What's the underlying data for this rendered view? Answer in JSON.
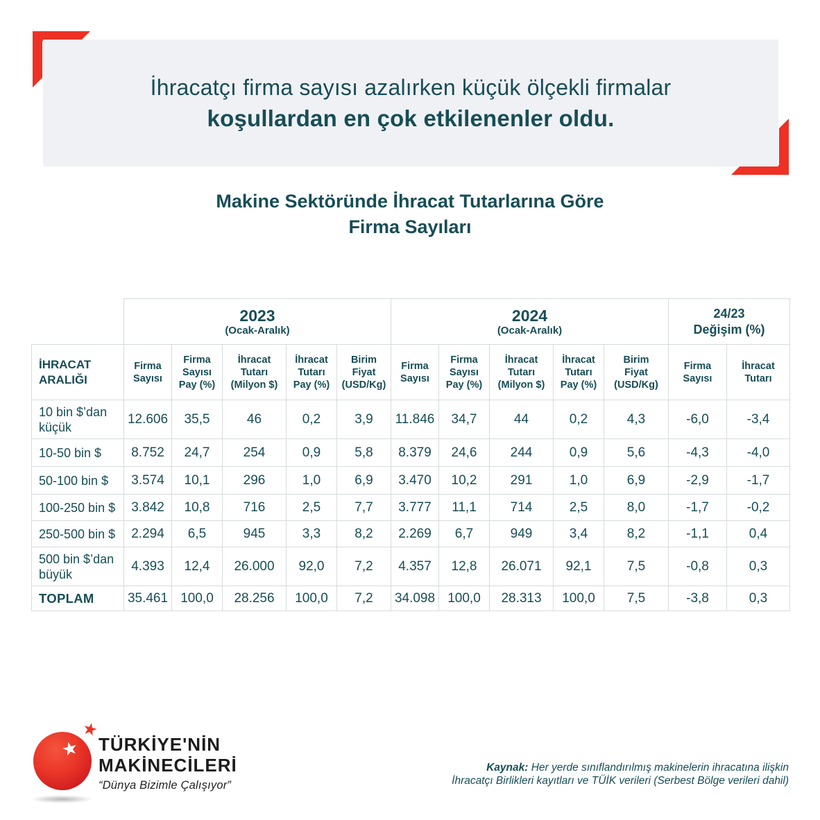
{
  "colors": {
    "accent_red": "#ee3124",
    "teal": "#174d57",
    "banner_bg": "#f0f1f4",
    "table_border": "#d7dbdf"
  },
  "banner": {
    "line1": "İhracatçı firma sayısı azalırken küçük ölçekli firmalar",
    "line2": "koşullardan en çok etkilenenler oldu."
  },
  "title": {
    "line1": "Makine Sektöründe İhracat Tutarlarına Göre",
    "line2": "Firma Sayıları"
  },
  "chart_data": {
    "type": "table",
    "title": "Makine Sektöründe İhracat Tutarlarına Göre Firma Sayıları",
    "row_axis_label": "İHRACAT ARALIĞI",
    "column_groups": [
      {
        "label": "2023",
        "sublabel": "(Ocak-Aralık)",
        "span": 5
      },
      {
        "label": "2024",
        "sublabel": "(Ocak-Aralık)",
        "span": 5
      },
      {
        "label": "24/23",
        "sublabel": "Değişim (%)",
        "span": 2
      }
    ],
    "period_subcolumns": [
      "Firma\nSayısı",
      "Firma\nSayısı\nPay (%)",
      "İhracat\nTutarı\n(Milyon $)",
      "İhracat\nTutarı\nPay (%)",
      "Birim\nFiyat\n(USD/Kg)"
    ],
    "change_subcolumns": [
      "Firma\nSayısı",
      "İhracat\nTutarı"
    ],
    "rows": [
      {
        "label": "10 bin $’dan küçük",
        "values": [
          "12.606",
          "35,5",
          "46",
          "0,2",
          "3,9",
          "11.846",
          "34,7",
          "44",
          "0,2",
          "4,3",
          "-6,0",
          "-3,4"
        ]
      },
      {
        "label": "10-50 bin $",
        "values": [
          "8.752",
          "24,7",
          "254",
          "0,9",
          "5,8",
          "8.379",
          "24,6",
          "244",
          "0,9",
          "5,6",
          "-4,3",
          "-4,0"
        ]
      },
      {
        "label": "50-100 bin $",
        "values": [
          "3.574",
          "10,1",
          "296",
          "1,0",
          "6,9",
          "3.470",
          "10,2",
          "291",
          "1,0",
          "6,9",
          "-2,9",
          "-1,7"
        ]
      },
      {
        "label": "100-250 bin $",
        "values": [
          "3.842",
          "10,8",
          "716",
          "2,5",
          "7,7",
          "3.777",
          "11,1",
          "714",
          "2,5",
          "8,0",
          "-1,7",
          "-0,2"
        ]
      },
      {
        "label": "250-500 bin $",
        "values": [
          "2.294",
          "6,5",
          "945",
          "3,3",
          "8,2",
          "2.269",
          "6,7",
          "949",
          "3,4",
          "8,2",
          "-1,1",
          "0,4"
        ]
      },
      {
        "label": "500 bin $’dan büyük",
        "values": [
          "4.393",
          "12,4",
          "26.000",
          "92,0",
          "7,2",
          "4.357",
          "12,8",
          "26.071",
          "92,1",
          "7,5",
          "-0,8",
          "0,3"
        ]
      },
      {
        "label": "TOPLAM",
        "is_total": true,
        "values": [
          "35.461",
          "100,0",
          "28.256",
          "100,0",
          "7,2",
          "34.098",
          "100,0",
          "28.313",
          "100,0",
          "7,5",
          "-3,8",
          "0,3"
        ]
      }
    ]
  },
  "logo": {
    "name_line1": "TÜRKİYE'NİN",
    "name_line2": "MAKİNECİLERİ",
    "tagline": "“Dünya Bizimle Çalışıyor”"
  },
  "source": {
    "label": "Kaynak:",
    "line1": " Her yerde sınıflandırılmış makinelerin ihracatına ilişkin",
    "line2": "İhracatçı Birlikleri kayıtları ve TÜİK verileri (Serbest Bölge verileri dahil)"
  }
}
